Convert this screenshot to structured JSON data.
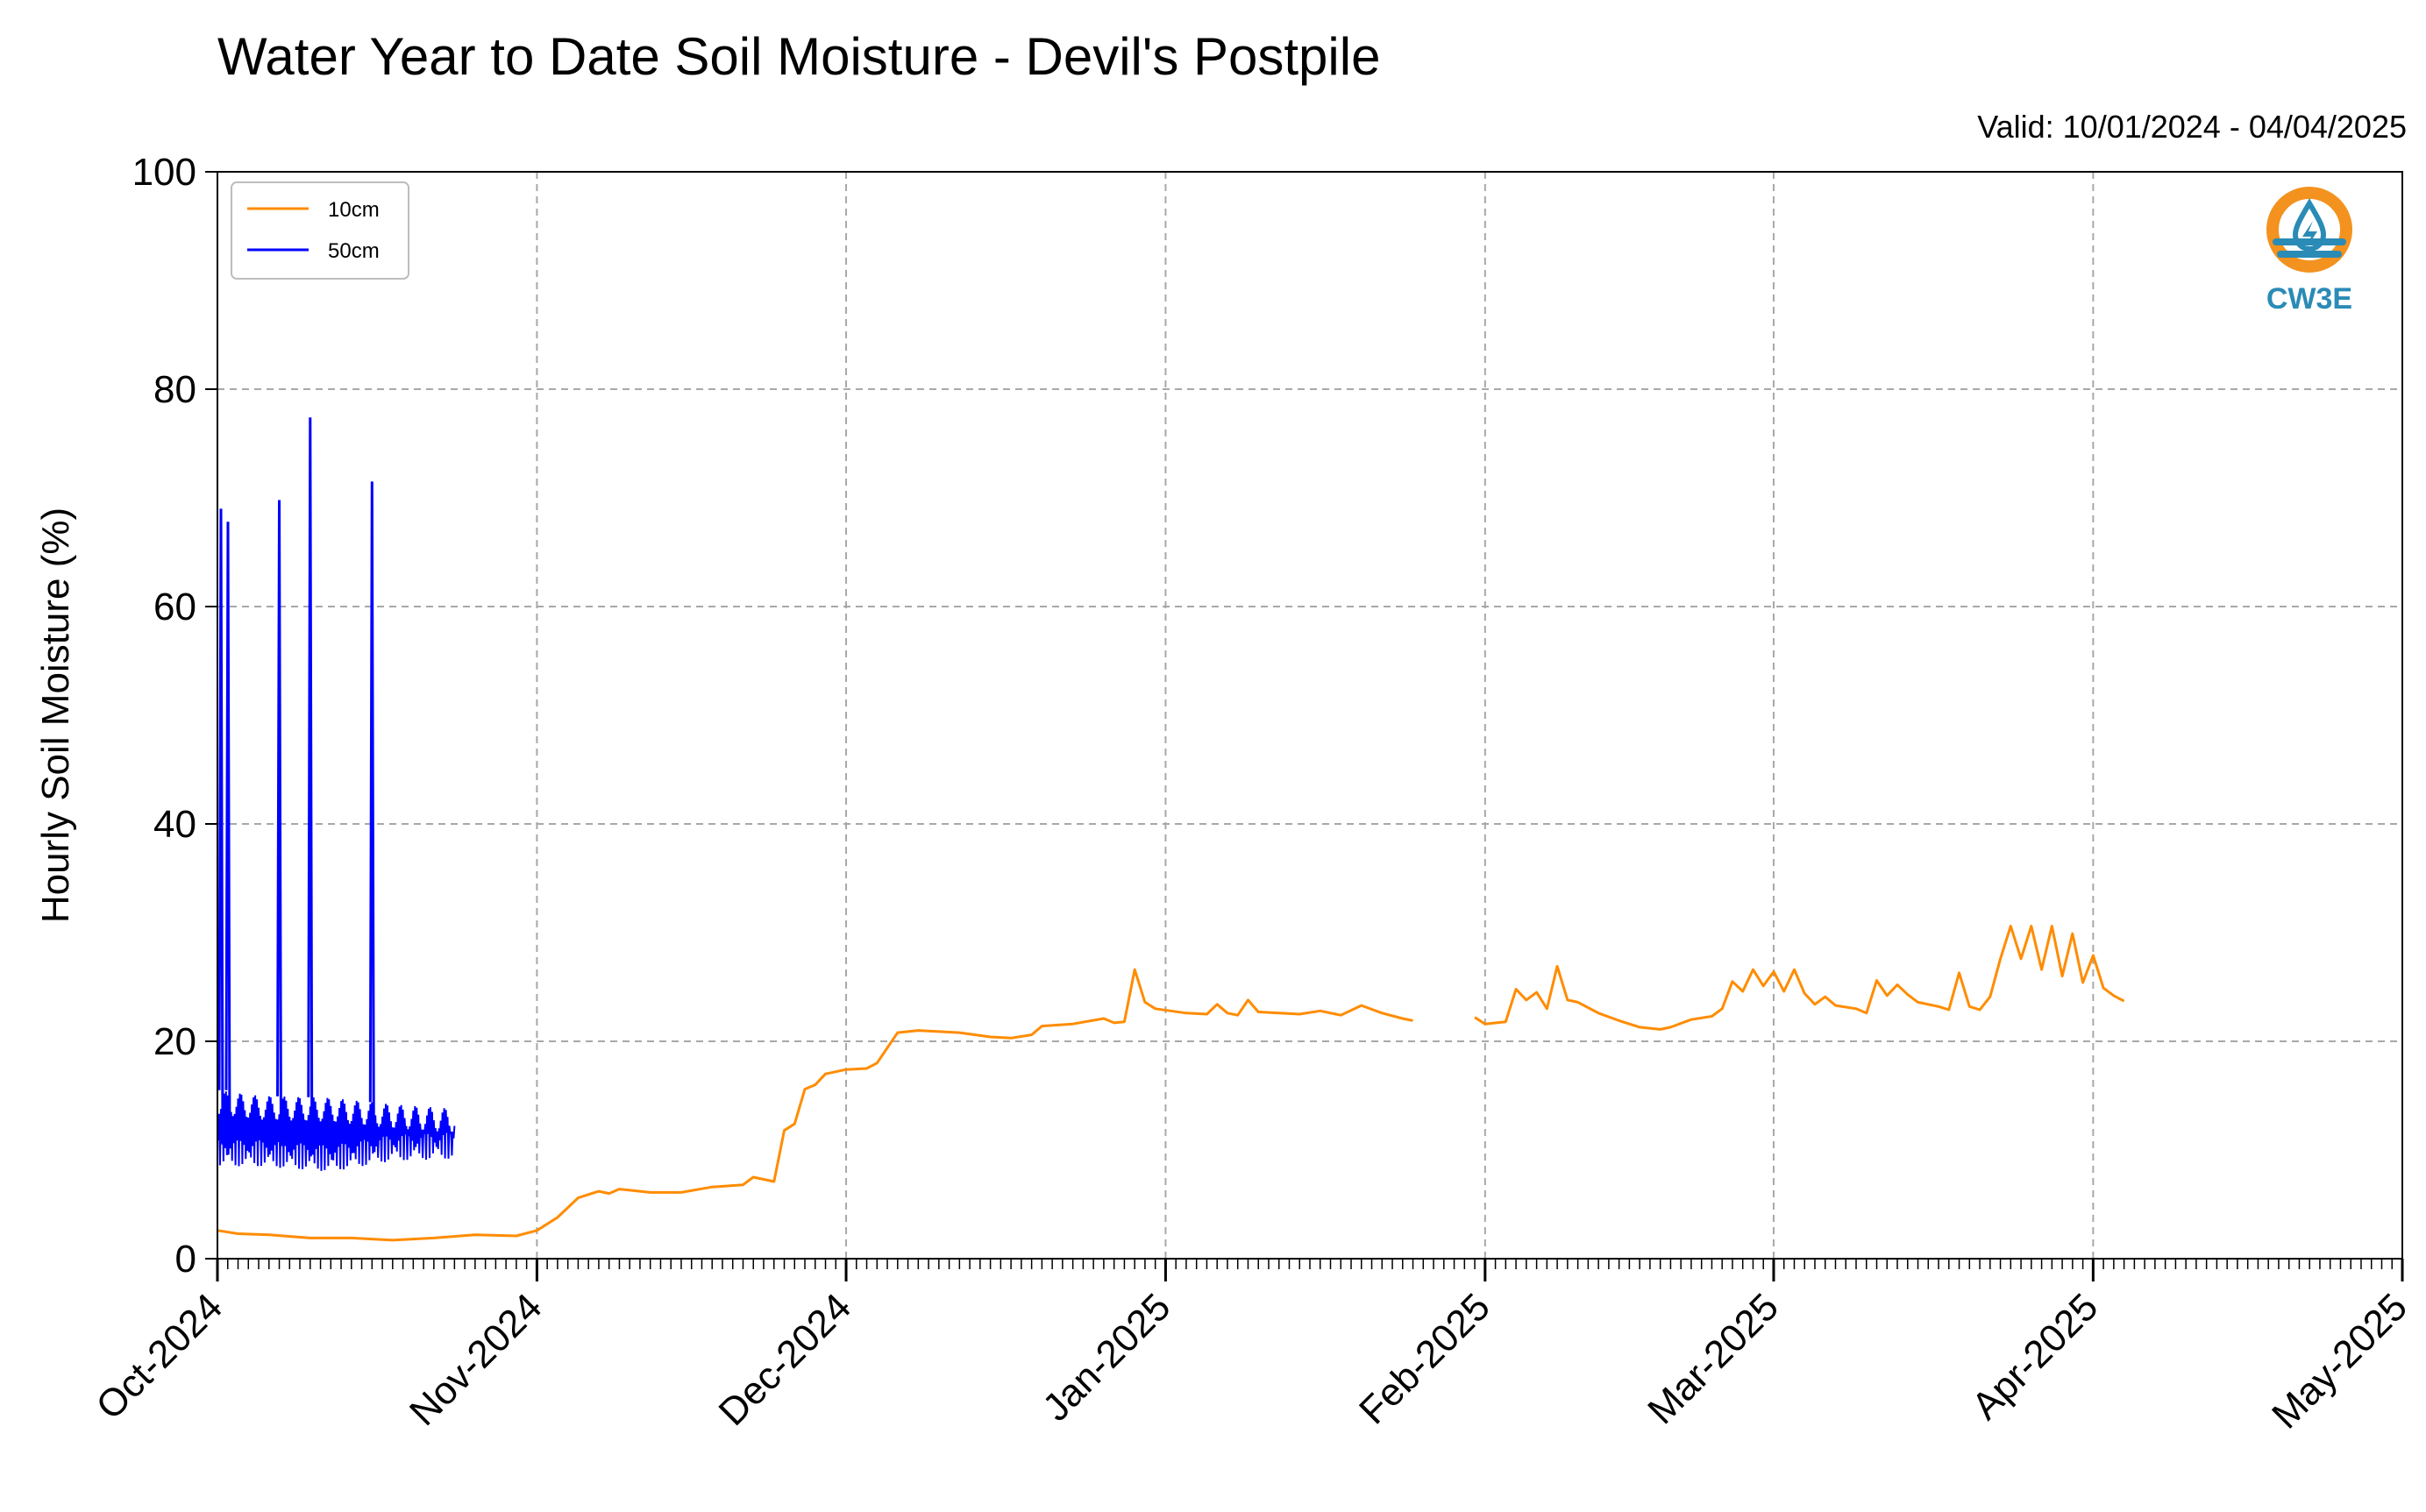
{
  "title": "Water Year to Date Soil Moisture - Devil's Postpile",
  "valid": "Valid: 10/01/2024 - 04/04/2025",
  "logo": {
    "text": "CW3E",
    "icon": "cw3e-water-drop-logo",
    "colors": {
      "ring": "#f3921f",
      "accent": "#2a8bb6"
    }
  },
  "chart_data": {
    "type": "line",
    "ylabel": "Hourly Soil Moisture (%)",
    "xlabel": "",
    "ylim": [
      0,
      100
    ],
    "yticks": [
      0,
      20,
      40,
      60,
      80,
      100
    ],
    "xlim": [
      "2024-10-01",
      "2025-05-01"
    ],
    "xticks": [
      {
        "date": "2024-10-01",
        "label": "Oct-2024"
      },
      {
        "date": "2024-11-01",
        "label": "Nov-2024"
      },
      {
        "date": "2024-12-01",
        "label": "Dec-2024"
      },
      {
        "date": "2025-01-01",
        "label": "Jan-2025"
      },
      {
        "date": "2025-02-01",
        "label": "Feb-2025"
      },
      {
        "date": "2025-03-01",
        "label": "Mar-2025"
      },
      {
        "date": "2025-04-01",
        "label": "Apr-2025"
      },
      {
        "date": "2025-05-01",
        "label": "May-2025"
      }
    ],
    "grid": true,
    "legend_position": "top-left",
    "series": [
      {
        "name": "10cm",
        "color": "#ff8c00",
        "segments": [
          [
            [
              "2024-10-01",
              2.6
            ],
            [
              "2024-10-03",
              2.3
            ],
            [
              "2024-10-06",
              2.2
            ],
            [
              "2024-10-10",
              1.9
            ],
            [
              "2024-10-14",
              1.9
            ],
            [
              "2024-10-18",
              1.7
            ],
            [
              "2024-10-22",
              1.9
            ],
            [
              "2024-10-26",
              2.2
            ],
            [
              "2024-10-30",
              2.1
            ],
            [
              "2024-11-01",
              2.6
            ],
            [
              "2024-11-03",
              3.8
            ],
            [
              "2024-11-05",
              5.6
            ],
            [
              "2024-11-07",
              6.2
            ],
            [
              "2024-11-08",
              6.0
            ],
            [
              "2024-11-09",
              6.4
            ],
            [
              "2024-11-12",
              6.1
            ],
            [
              "2024-11-15",
              6.1
            ],
            [
              "2024-11-18",
              6.6
            ],
            [
              "2024-11-21",
              6.8
            ],
            [
              "2024-11-22",
              7.5
            ],
            [
              "2024-11-24",
              7.1
            ],
            [
              "2024-11-25",
              11.8
            ],
            [
              "2024-11-26",
              12.4
            ],
            [
              "2024-11-27",
              15.6
            ],
            [
              "2024-11-28",
              16.0
            ],
            [
              "2024-11-29",
              17.0
            ],
            [
              "2024-12-01",
              17.4
            ],
            [
              "2024-12-03",
              17.5
            ],
            [
              "2024-12-04",
              18.0
            ],
            [
              "2024-12-05",
              19.4
            ],
            [
              "2024-12-06",
              20.8
            ],
            [
              "2024-12-08",
              21.0
            ],
            [
              "2024-12-12",
              20.8
            ],
            [
              "2024-12-15",
              20.4
            ],
            [
              "2024-12-17",
              20.3
            ],
            [
              "2024-12-19",
              20.6
            ],
            [
              "2024-12-20",
              21.4
            ],
            [
              "2024-12-23",
              21.6
            ],
            [
              "2024-12-26",
              22.1
            ],
            [
              "2024-12-27",
              21.7
            ],
            [
              "2024-12-28",
              21.8
            ],
            [
              "2024-12-29",
              26.6
            ],
            [
              "2024-12-30",
              23.6
            ],
            [
              "2024-12-31",
              23.0
            ],
            [
              "2025-01-03",
              22.6
            ],
            [
              "2025-01-05",
              22.5
            ],
            [
              "2025-01-06",
              23.4
            ],
            [
              "2025-01-07",
              22.6
            ],
            [
              "2025-01-08",
              22.4
            ],
            [
              "2025-01-09",
              23.8
            ],
            [
              "2025-01-10",
              22.7
            ],
            [
              "2025-01-14",
              22.5
            ],
            [
              "2025-01-16",
              22.8
            ],
            [
              "2025-01-18",
              22.4
            ],
            [
              "2025-01-20",
              23.3
            ],
            [
              "2025-01-22",
              22.6
            ],
            [
              "2025-01-24",
              22.1
            ],
            [
              "2025-01-25",
              21.9
            ]
          ],
          [
            [
              "2025-01-31",
              22.2
            ],
            [
              "2025-02-01",
              21.6
            ],
            [
              "2025-02-03",
              21.8
            ],
            [
              "2025-02-04",
              24.8
            ],
            [
              "2025-02-05",
              23.8
            ],
            [
              "2025-02-06",
              24.5
            ],
            [
              "2025-02-07",
              23.0
            ],
            [
              "2025-02-08",
              26.9
            ],
            [
              "2025-02-09",
              23.8
            ],
            [
              "2025-02-10",
              23.6
            ],
            [
              "2025-02-12",
              22.6
            ],
            [
              "2025-02-14",
              21.9
            ],
            [
              "2025-02-16",
              21.3
            ],
            [
              "2025-02-18",
              21.1
            ],
            [
              "2025-02-19",
              21.3
            ],
            [
              "2025-02-21",
              22.0
            ],
            [
              "2025-02-23",
              22.3
            ],
            [
              "2025-02-24",
              23.0
            ],
            [
              "2025-02-25",
              25.5
            ],
            [
              "2025-02-26",
              24.6
            ],
            [
              "2025-02-27",
              26.6
            ],
            [
              "2025-02-28",
              25.1
            ],
            [
              "2025-03-01",
              26.4
            ],
            [
              "2025-03-02",
              24.6
            ],
            [
              "2025-03-03",
              26.6
            ],
            [
              "2025-03-04",
              24.4
            ],
            [
              "2025-03-05",
              23.4
            ],
            [
              "2025-03-06",
              24.1
            ],
            [
              "2025-03-07",
              23.3
            ],
            [
              "2025-03-09",
              23.0
            ],
            [
              "2025-03-10",
              22.6
            ],
            [
              "2025-03-11",
              25.6
            ],
            [
              "2025-03-12",
              24.2
            ],
            [
              "2025-03-13",
              25.2
            ],
            [
              "2025-03-14",
              24.3
            ],
            [
              "2025-03-15",
              23.6
            ],
            [
              "2025-03-17",
              23.2
            ],
            [
              "2025-03-18",
              22.9
            ],
            [
              "2025-03-19",
              26.3
            ],
            [
              "2025-03-20",
              23.2
            ],
            [
              "2025-03-21",
              22.9
            ],
            [
              "2025-03-22",
              24.1
            ],
            [
              "2025-03-23",
              27.6
            ],
            [
              "2025-03-24",
              30.6
            ],
            [
              "2025-03-25",
              27.6
            ],
            [
              "2025-03-26",
              30.6
            ],
            [
              "2025-03-27",
              26.6
            ],
            [
              "2025-03-28",
              30.6
            ],
            [
              "2025-03-29",
              26.0
            ],
            [
              "2025-03-30",
              29.9
            ],
            [
              "2025-03-31",
              25.4
            ],
            [
              "2025-04-01",
              27.9
            ],
            [
              "2025-04-02",
              24.9
            ],
            [
              "2025-04-03",
              24.2
            ],
            [
              "2025-04-04",
              23.7
            ]
          ]
        ]
      },
      {
        "name": "50cm",
        "color": "#0000ff",
        "band": [
          [
            "2024-10-01",
            8.5,
            15.5
          ],
          [
            "2024-10-05",
            8.5,
            15.0
          ],
          [
            "2024-10-12",
            8.0,
            14.8
          ],
          [
            "2024-10-18",
            9.0,
            14.2
          ],
          [
            "2024-10-24",
            9.2,
            13.8
          ]
        ],
        "spikes": [
          [
            "2024-10-01",
            69.0
          ],
          [
            "2024-10-01",
            67.8
          ],
          [
            "2024-10-07",
            69.8
          ],
          [
            "2024-10-10",
            77.4
          ],
          [
            "2024-10-16",
            71.5
          ]
        ],
        "range": [
          "2024-10-01",
          "2024-10-24"
        ]
      }
    ]
  }
}
